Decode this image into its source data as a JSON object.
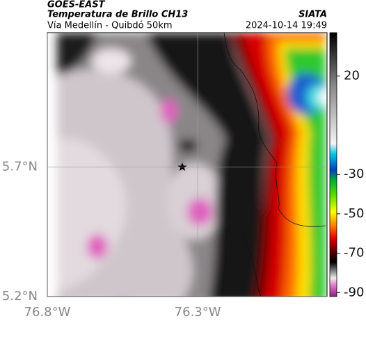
{
  "map": {
    "source": "GOES-EAST",
    "title": "Temperatura de Brillo CH13",
    "credit": "SIATA",
    "subtitle": "Vía Medellín - Quibdó 50km",
    "timestamp": "2024-10-14 19:49",
    "xlim": [
      -76.8,
      -75.87
    ],
    "ylim": [
      5.2,
      6.22
    ],
    "xticks": [
      {
        "value": -76.8,
        "label": "76.8°W"
      },
      {
        "value": -76.3,
        "label": "76.3°W"
      }
    ],
    "yticks": [
      {
        "value": 5.2,
        "label": "5.2°N"
      },
      {
        "value": 5.7,
        "label": "5.7°N"
      }
    ]
  },
  "colorbar": {
    "clim": [
      -92,
      42
    ],
    "ticks": [
      20,
      -30,
      -50,
      -70,
      -90
    ]
  }
}
